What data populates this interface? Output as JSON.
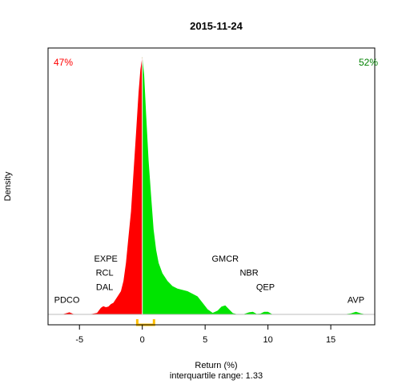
{
  "chart_data": {
    "type": "area",
    "title": "2015-11-24",
    "xlabel": "Return (%)",
    "ylabel": "Density",
    "subtitle": "interquartile range: 1.33",
    "xlim": [
      -7.5,
      18.5
    ],
    "ylim": [
      0,
      1
    ],
    "x_ticks": [
      -5,
      0,
      5,
      10,
      15
    ],
    "x_tick_labels": [
      "-5",
      "0",
      "5",
      "10",
      "15"
    ],
    "grid": false,
    "pct_negative": "47%",
    "pct_positive": "52%",
    "colors": {
      "negative": "#ff0000",
      "positive": "#00e400",
      "iqr": "#ffc000",
      "baseline": "#bebebe",
      "axis": "#000000"
    },
    "iqr": [
      -0.4,
      0.93
    ],
    "series": [
      {
        "x": [
          -6.4,
          -6.1,
          -5.8,
          -5.5,
          -5.0,
          -4.5,
          -4.0,
          -3.6,
          -3.3,
          -3.1,
          -2.9,
          -2.7,
          -2.5,
          -2.3,
          -2.1,
          -1.9,
          -1.7,
          -1.5,
          -1.3,
          -1.1,
          -0.9,
          -0.7,
          -0.5,
          -0.3,
          -0.15,
          0.0,
          0.15,
          0.3,
          0.5,
          0.7,
          0.9,
          1.1,
          1.3,
          1.6,
          2.0,
          2.4,
          2.8,
          3.2,
          3.6,
          4.0,
          4.4,
          4.8,
          5.2,
          5.6,
          6.0,
          6.3,
          6.6,
          6.9,
          7.2,
          7.6,
          8.0,
          8.5,
          8.8,
          9.1,
          9.4,
          9.7,
          10.0,
          10.3,
          10.6,
          11.0,
          12.0,
          13.0,
          14.0,
          15.0,
          16.0,
          16.6,
          17.0,
          17.4,
          17.8
        ],
        "density": [
          0.0,
          0.004,
          0.008,
          0.002,
          0.0,
          0.0,
          0.002,
          0.006,
          0.025,
          0.032,
          0.028,
          0.03,
          0.04,
          0.045,
          0.06,
          0.075,
          0.09,
          0.13,
          0.2,
          0.3,
          0.4,
          0.55,
          0.7,
          0.86,
          0.95,
          1.0,
          0.93,
          0.78,
          0.6,
          0.46,
          0.33,
          0.25,
          0.2,
          0.16,
          0.13,
          0.11,
          0.1,
          0.095,
          0.09,
          0.08,
          0.07,
          0.045,
          0.02,
          0.006,
          0.015,
          0.03,
          0.035,
          0.02,
          0.005,
          0.0,
          0.0,
          0.008,
          0.01,
          0.002,
          0.003,
          0.01,
          0.01,
          0.002,
          0.0,
          0.0,
          0.0,
          0.0,
          0.0,
          0.0,
          0.0,
          0.004,
          0.01,
          0.004,
          0.0
        ]
      }
    ],
    "annotations": [
      {
        "text": "PDCO",
        "x": -6.0,
        "y": 0.045
      },
      {
        "text": "DAL",
        "x": -3.0,
        "y": 0.095
      },
      {
        "text": "RCL",
        "x": -3.0,
        "y": 0.15
      },
      {
        "text": "EXPE",
        "x": -2.9,
        "y": 0.205
      },
      {
        "text": "GMCR",
        "x": 6.6,
        "y": 0.205
      },
      {
        "text": "NBR",
        "x": 8.5,
        "y": 0.15
      },
      {
        "text": "QEP",
        "x": 9.8,
        "y": 0.095
      },
      {
        "text": "AVP",
        "x": 17.0,
        "y": 0.045
      }
    ]
  }
}
